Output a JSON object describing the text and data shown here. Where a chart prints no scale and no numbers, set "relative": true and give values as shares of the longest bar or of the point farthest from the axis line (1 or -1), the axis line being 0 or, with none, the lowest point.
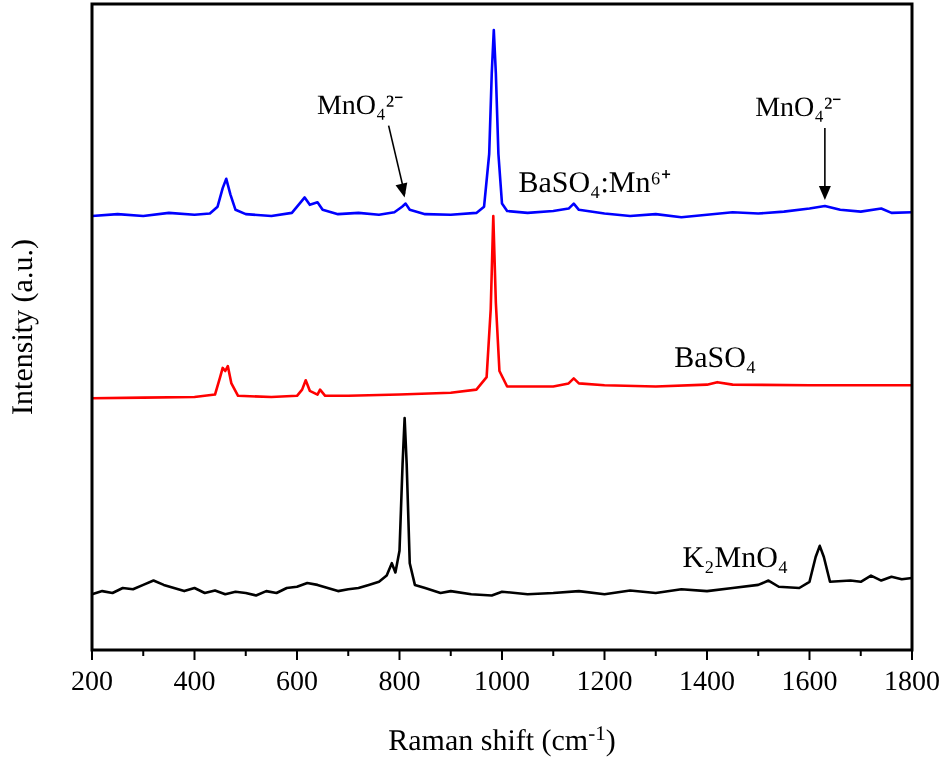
{
  "chart_data": {
    "type": "line",
    "xlabel": "Raman shift (cm$^{-1}$)",
    "ylabel": "Intensity (a.u.)",
    "relative": true,
    "tick_labels": "x",
    "grid": false,
    "marker": "none",
    "line_style": "solid",
    "xlim": [
      200,
      1800
    ],
    "xticks": [
      200,
      {
        "value": 300,
        "label": null
      },
      400,
      {
        "value": 500,
        "label": null
      },
      600,
      {
        "value": 700,
        "label": null
      },
      800,
      {
        "value": 900,
        "label": null
      },
      1000,
      {
        "value": 1100,
        "label": null
      },
      1200,
      {
        "value": 1300,
        "label": null
      },
      1400,
      {
        "value": 1500,
        "label": null
      },
      1600,
      {
        "value": 1700,
        "label": null
      },
      1800
    ],
    "series": [
      {
        "name": "BaSO₄:Mn⁶⁺",
        "color": "#0000ff",
        "x": [
          200,
          250,
          300,
          350,
          400,
          430,
          445,
          455,
          462,
          470,
          480,
          500,
          550,
          590,
          605,
          615,
          625,
          640,
          650,
          680,
          720,
          760,
          790,
          805,
          812,
          820,
          850,
          900,
          950,
          965,
          975,
          980,
          984,
          988,
          993,
          1000,
          1010,
          1050,
          1100,
          1130,
          1140,
          1150,
          1200,
          1250,
          1300,
          1350,
          1400,
          1450,
          1500,
          1550,
          1600,
          1630,
          1660,
          1700,
          1740,
          1760,
          1800
        ],
        "values": [
          0.7,
          0.703,
          0.7,
          0.705,
          0.702,
          0.704,
          0.715,
          0.745,
          0.76,
          0.735,
          0.71,
          0.703,
          0.7,
          0.705,
          0.72,
          0.73,
          0.718,
          0.722,
          0.71,
          0.703,
          0.705,
          0.702,
          0.706,
          0.715,
          0.72,
          0.71,
          0.703,
          0.702,
          0.705,
          0.715,
          0.8,
          0.93,
          1.0,
          0.93,
          0.8,
          0.72,
          0.708,
          0.705,
          0.708,
          0.712,
          0.72,
          0.71,
          0.704,
          0.7,
          0.703,
          0.698,
          0.702,
          0.706,
          0.704,
          0.707,
          0.712,
          0.716,
          0.71,
          0.707,
          0.712,
          0.705,
          0.706
        ]
      },
      {
        "name": "BaSO₄",
        "color": "#ff0000",
        "x": [
          200,
          300,
          400,
          440,
          450,
          455,
          460,
          465,
          472,
          485,
          550,
          600,
          610,
          617,
          625,
          640,
          645,
          655,
          700,
          800,
          900,
          950,
          970,
          978,
          983,
          988,
          995,
          1010,
          1100,
          1130,
          1140,
          1150,
          1200,
          1300,
          1400,
          1420,
          1450,
          1600,
          1800
        ],
        "values": [
          0.406,
          0.407,
          0.408,
          0.412,
          0.44,
          0.455,
          0.45,
          0.458,
          0.43,
          0.41,
          0.408,
          0.41,
          0.42,
          0.435,
          0.418,
          0.412,
          0.42,
          0.41,
          0.41,
          0.412,
          0.415,
          0.42,
          0.44,
          0.55,
          0.7,
          0.56,
          0.45,
          0.425,
          0.425,
          0.43,
          0.438,
          0.43,
          0.427,
          0.425,
          0.428,
          0.432,
          0.428,
          0.427,
          0.427
        ]
      },
      {
        "name": "K₂MnO₄",
        "color": "#000000",
        "x": [
          200,
          220,
          240,
          260,
          280,
          300,
          320,
          340,
          360,
          380,
          400,
          420,
          440,
          460,
          480,
          500,
          520,
          540,
          560,
          580,
          600,
          620,
          640,
          660,
          680,
          700,
          720,
          740,
          760,
          775,
          785,
          792,
          800,
          806,
          810,
          814,
          820,
          830,
          850,
          880,
          900,
          940,
          980,
          1000,
          1050,
          1100,
          1150,
          1200,
          1250,
          1300,
          1350,
          1400,
          1450,
          1500,
          1520,
          1540,
          1580,
          1600,
          1612,
          1620,
          1628,
          1640,
          1680,
          1700,
          1720,
          1740,
          1760,
          1780,
          1800
        ],
        "values": [
          0.09,
          0.095,
          0.092,
          0.1,
          0.098,
          0.105,
          0.112,
          0.105,
          0.1,
          0.095,
          0.1,
          0.092,
          0.096,
          0.09,
          0.094,
          0.092,
          0.088,
          0.095,
          0.092,
          0.1,
          0.102,
          0.108,
          0.105,
          0.1,
          0.095,
          0.098,
          0.1,
          0.105,
          0.11,
          0.12,
          0.14,
          0.125,
          0.16,
          0.3,
          0.374,
          0.3,
          0.14,
          0.105,
          0.1,
          0.092,
          0.095,
          0.09,
          0.088,
          0.094,
          0.09,
          0.092,
          0.095,
          0.09,
          0.096,
          0.092,
          0.098,
          0.095,
          0.1,
          0.105,
          0.112,
          0.102,
          0.1,
          0.11,
          0.15,
          0.168,
          0.15,
          0.11,
          0.112,
          0.11,
          0.12,
          0.112,
          0.118,
          0.114,
          0.116
        ]
      }
    ],
    "annotations": [
      {
        "text": "MnO₄²⁻",
        "x": 810,
        "y": 0.72
      },
      {
        "text": "MnO₄²⁻",
        "x": 1630,
        "y": 0.716
      }
    ]
  }
}
